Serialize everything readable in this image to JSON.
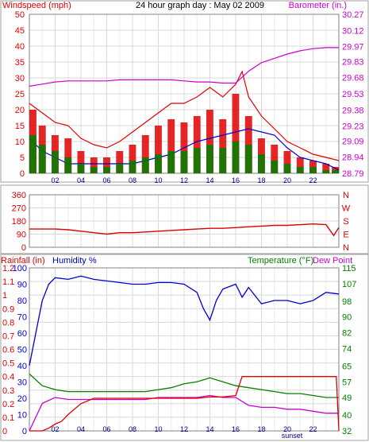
{
  "chart_data": [
    {
      "type": "line",
      "title": "24 hour graph day : May 02 2009",
      "left_label": "Windspeed (mph)",
      "right_label": "Barometer (in.)",
      "x_ticks": [
        "02",
        "04",
        "06",
        "08",
        "10",
        "12",
        "14",
        "16",
        "18",
        "20",
        "22"
      ],
      "sunset_label": "sunset",
      "sunset_hour": 20.0,
      "xlim": [
        0,
        24
      ],
      "ylim_left": [
        0,
        50
      ],
      "left_ticks": [
        "0",
        "5",
        "10",
        "15",
        "20",
        "25",
        "30",
        "35",
        "40",
        "45",
        "50"
      ],
      "ylim_right": [
        28.79,
        30.27
      ],
      "right_ticks": [
        "28.79",
        "28.94",
        "29.09",
        "29.23",
        "29.38",
        "29.53",
        "29.68",
        "29.83",
        "29.97",
        "30.12",
        "30.27"
      ],
      "grid": true,
      "series": [
        {
          "name": "Windspeed",
          "color": "#e00000",
          "kind": "bar",
          "axis": "left",
          "x": [
            0,
            1,
            2,
            3,
            4,
            5,
            6,
            7,
            8,
            9,
            10,
            11,
            12,
            13,
            14,
            15,
            16,
            17,
            18,
            19,
            20,
            21,
            22,
            23,
            24
          ],
          "values": [
            20,
            15,
            12,
            11,
            7,
            5,
            5,
            7,
            9,
            12,
            15,
            17,
            16,
            18,
            20,
            17,
            25,
            18,
            11,
            9,
            7,
            5,
            4,
            3,
            2
          ]
        },
        {
          "name": "Gust",
          "color": "#e00000",
          "kind": "line",
          "axis": "left",
          "x": [
            0,
            1,
            2,
            3,
            4,
            5,
            6,
            7,
            8,
            9,
            10,
            11,
            12,
            13,
            14,
            15,
            16,
            16.5,
            17,
            18,
            19,
            20,
            21,
            22,
            23,
            24
          ],
          "values": [
            22,
            19,
            16,
            15,
            11,
            9,
            8,
            10,
            13,
            16,
            19,
            22,
            22,
            24,
            27,
            24,
            28,
            32,
            24,
            18,
            14,
            10,
            8,
            6,
            5,
            4
          ]
        },
        {
          "name": "Average wind",
          "color": "#0000cc",
          "kind": "line",
          "axis": "left",
          "x": [
            0,
            0.5,
            1,
            1.5,
            2,
            2.5,
            3,
            3.5,
            4,
            5,
            6,
            7,
            8,
            9,
            10,
            11,
            12,
            13,
            14,
            15,
            16,
            17,
            18,
            19,
            20,
            21,
            22,
            23,
            24
          ],
          "values": [
            11,
            9,
            7,
            6,
            5,
            4,
            3,
            3,
            3,
            3,
            3,
            3,
            3,
            4,
            5,
            6,
            8,
            10,
            11,
            12,
            13,
            14,
            13,
            12,
            8,
            5,
            4,
            3,
            1
          ]
        },
        {
          "name": "Wind",
          "color": "#008000",
          "kind": "bar",
          "axis": "left",
          "x": [
            0,
            1,
            2,
            3,
            4,
            5,
            6,
            7,
            8,
            9,
            10,
            11,
            12,
            13,
            14,
            15,
            16,
            17,
            18,
            19,
            20,
            21,
            22,
            23,
            24
          ],
          "values": [
            12,
            9,
            7,
            5,
            3,
            2,
            2,
            3,
            4,
            5,
            6,
            7,
            7,
            8,
            9,
            8,
            10,
            9,
            6,
            4,
            3,
            2,
            2,
            1,
            1
          ]
        },
        {
          "name": "Barometer",
          "color": "#cc00cc",
          "kind": "line",
          "axis": "right",
          "x": [
            0,
            1,
            2,
            3,
            4,
            5,
            6,
            7,
            8,
            9,
            10,
            11,
            12,
            13,
            14,
            15,
            16,
            17,
            18,
            19,
            20,
            21,
            22,
            23,
            24
          ],
          "values": [
            29.6,
            29.62,
            29.64,
            29.65,
            29.65,
            29.65,
            29.65,
            29.66,
            29.66,
            29.66,
            29.66,
            29.66,
            29.65,
            29.64,
            29.64,
            29.63,
            29.63,
            29.74,
            29.82,
            29.86,
            29.9,
            29.93,
            29.95,
            29.96,
            29.96
          ]
        }
      ]
    },
    {
      "type": "line",
      "title": "",
      "left_label": "",
      "right_label": "NWSEN",
      "right_letters": [
        "N",
        "W",
        "S",
        "E",
        "N"
      ],
      "x_ticks": [
        "02",
        "04",
        "06",
        "08",
        "10",
        "12",
        "14",
        "16",
        "18",
        "20",
        "22"
      ],
      "xlim": [
        0,
        24
      ],
      "ylim": [
        0,
        360
      ],
      "left_ticks": [
        "0",
        "90",
        "180",
        "270",
        "360"
      ],
      "grid": true,
      "series": [
        {
          "name": "Wind direction",
          "color": "#e00000",
          "axis": "left",
          "x": [
            0,
            1,
            2,
            3,
            4,
            5,
            6,
            7,
            8,
            9,
            10,
            11,
            12,
            13,
            14,
            15,
            16,
            17,
            18,
            19,
            20,
            21,
            22,
            23,
            23.6,
            24
          ],
          "values": [
            125,
            125,
            125,
            120,
            110,
            100,
            90,
            100,
            100,
            105,
            110,
            115,
            120,
            125,
            130,
            130,
            135,
            140,
            145,
            150,
            150,
            155,
            160,
            155,
            80,
            135
          ]
        }
      ]
    },
    {
      "type": "line",
      "title": "",
      "labels": {
        "rainfall": "Rainfall (in)",
        "humidity": "Humidity %",
        "temperature": "Temperature (°F)",
        "dewpoint": "Dew Point"
      },
      "x_ticks": [
        "02",
        "04",
        "06",
        "08",
        "10",
        "12",
        "14",
        "16",
        "18",
        "20",
        "22"
      ],
      "sunset_label": "sunset",
      "sunset_hour": 20.0,
      "xlim": [
        0,
        24
      ],
      "ylim_rain": [
        0,
        1.2
      ],
      "rain_ticks": [
        "0",
        "0.1",
        "0.2",
        "0.3",
        "0.4",
        "0.5",
        "0.6",
        "0.7",
        "0.8",
        "0.9",
        "1",
        "1.1",
        "1.2"
      ],
      "ylim_hum": [
        0,
        100
      ],
      "hum_ticks": [
        "0",
        "10",
        "20",
        "30",
        "40",
        "50",
        "60",
        "70",
        "80",
        "90",
        "100"
      ],
      "ylim_temp": [
        32,
        115
      ],
      "temp_ticks": [
        "32",
        "40",
        "49",
        "57",
        "65",
        "74",
        "82",
        "90",
        "98",
        "107",
        "115"
      ],
      "grid": true,
      "series": [
        {
          "name": "Humidity",
          "color": "#0000cc",
          "axis": "hum",
          "x": [
            0,
            0.5,
            1,
            1.5,
            2,
            3,
            4,
            5,
            6,
            7,
            8,
            9,
            10,
            11,
            12,
            13,
            13.5,
            14,
            14.5,
            15,
            16,
            16.5,
            17,
            18,
            19,
            20,
            21,
            22,
            23,
            24
          ],
          "values": [
            40,
            60,
            80,
            90,
            94,
            93,
            95,
            93,
            92,
            91,
            90,
            90,
            91,
            91,
            90,
            85,
            75,
            68,
            80,
            87,
            90,
            82,
            88,
            78,
            80,
            80,
            78,
            80,
            85,
            84
          ]
        },
        {
          "name": "Temperature",
          "color": "#008000",
          "axis": "temp",
          "x": [
            0,
            1,
            2,
            3,
            4,
            5,
            6,
            7,
            8,
            9,
            10,
            11,
            12,
            13,
            14,
            15,
            16,
            17,
            18,
            19,
            20,
            21,
            22,
            23,
            24
          ],
          "values": [
            61,
            55,
            53,
            52,
            52,
            52,
            52,
            52,
            52,
            52,
            53,
            54,
            56,
            57,
            59,
            57,
            55,
            54,
            53,
            52,
            51,
            51,
            50,
            49,
            49
          ]
        },
        {
          "name": "Dew Point",
          "color": "#cc00cc",
          "axis": "temp",
          "x": [
            0,
            1,
            2,
            3,
            4,
            5,
            6,
            7,
            8,
            9,
            10,
            11,
            12,
            13,
            14,
            15,
            16,
            17,
            18,
            19,
            20,
            21,
            22,
            23,
            24
          ],
          "values": [
            32,
            46,
            49,
            48,
            48,
            48,
            48,
            48,
            48,
            48,
            49,
            49,
            49,
            49,
            50,
            49,
            49,
            45,
            44,
            44,
            43,
            43,
            42,
            41,
            41
          ]
        },
        {
          "name": "Rainfall",
          "color": "#e00000",
          "axis": "rain",
          "x": [
            0,
            1,
            1.5,
            2,
            2.5,
            3,
            4,
            5,
            6,
            7,
            8,
            9,
            10,
            11,
            12,
            13,
            14,
            15,
            16,
            16.5,
            17,
            18,
            19,
            20,
            21,
            22,
            23,
            23.8,
            24
          ],
          "values": [
            0,
            0,
            0.02,
            0.05,
            0.07,
            0.12,
            0.2,
            0.24,
            0.24,
            0.24,
            0.24,
            0.24,
            0.24,
            0.24,
            0.24,
            0.24,
            0.25,
            0.25,
            0.26,
            0.4,
            0.4,
            0.4,
            0.4,
            0.4,
            0.4,
            0.4,
            0.4,
            0.4,
            0
          ]
        }
      ]
    }
  ]
}
